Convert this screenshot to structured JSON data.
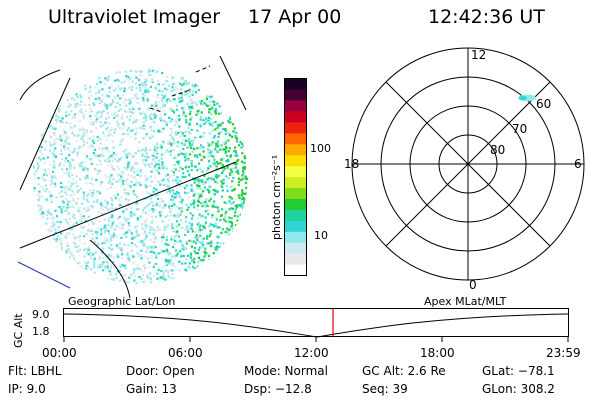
{
  "header": {
    "instrument": "Ultraviolet Imager",
    "date": "17 Apr 00",
    "time": "12:42:36 UT"
  },
  "colorbar": {
    "unit_label": "photon cm⁻²s⁻¹",
    "tick_labels": [
      "100",
      "10"
    ],
    "colors": [
      "#ffffff",
      "#e9e9e9",
      "#cfe9ef",
      "#8fe8ea",
      "#2fd4d4",
      "#1fd49a",
      "#22cc33",
      "#7fdd1a",
      "#ccee22",
      "#f2ff44",
      "#ffdd00",
      "#ffaa00",
      "#ff6600",
      "#ee2211",
      "#cc0022",
      "#99003d",
      "#440033",
      "#1a0022"
    ]
  },
  "polar": {
    "mlt_labels": {
      "top": "12",
      "left": "18",
      "right": "6",
      "bottom": "0"
    },
    "lat_labels": [
      "60",
      "70",
      "80"
    ]
  },
  "timeline": {
    "axis_title": "GC Alt",
    "ymax": "9.0",
    "ymin": "1.8",
    "left_label": "Geographic Lat/Lon",
    "right_label": "Apex MLat/MLT",
    "ticks": [
      "00:00",
      "06:00",
      "12:00",
      "18:00",
      "23:59"
    ],
    "marker_color": "#dd0000"
  },
  "info": {
    "flt": "Flt: LBHL",
    "ip": "IP: 9.0",
    "door": "Door: Open",
    "gain": "Gain: 13",
    "mode": "Mode: Normal",
    "dsp": "Dsp: −12.8",
    "gcalt": "GC Alt: 2.6 Re",
    "seq": "Seq: 39",
    "glat": "GLat: −78.1",
    "glon": "GLon: 308.2"
  }
}
